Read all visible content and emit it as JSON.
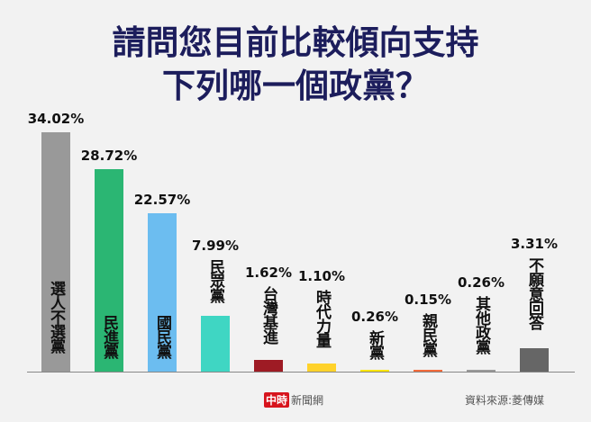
{
  "chart_data": {
    "type": "bar",
    "title": [
      "請問您目前比較傾向支持",
      "下列哪一個政黨？"
    ],
    "categories": [
      "選人不選黨",
      "民進黨",
      "國民黨",
      "民眾黨",
      "台灣基進",
      "時代力量",
      "新黨",
      "親民黨",
      "其他政黨",
      "不願意回答"
    ],
    "values": [
      34.02,
      28.72,
      22.57,
      7.99,
      1.62,
      1.1,
      0.26,
      0.15,
      0.26,
      3.31
    ],
    "value_labels": [
      "34.02%",
      "28.72%",
      "22.57%",
      "7.99%",
      "1.62%",
      "1.10%",
      "0.26%",
      "0.15%",
      "0.26%",
      "3.31%"
    ],
    "colors": [
      "#999999",
      "#2bb673",
      "#6cbdf0",
      "#3fd6c3",
      "#9e1b24",
      "#ffd22b",
      "#ffe600",
      "#f26a3a",
      "#9a9a9a",
      "#666666"
    ],
    "ylim": [
      0,
      34.02
    ],
    "grid": false,
    "legend": "none"
  },
  "footer": {
    "logo_mark": "中時",
    "logo_text": "新聞網",
    "source": "資料來源:菱傳媒"
  }
}
